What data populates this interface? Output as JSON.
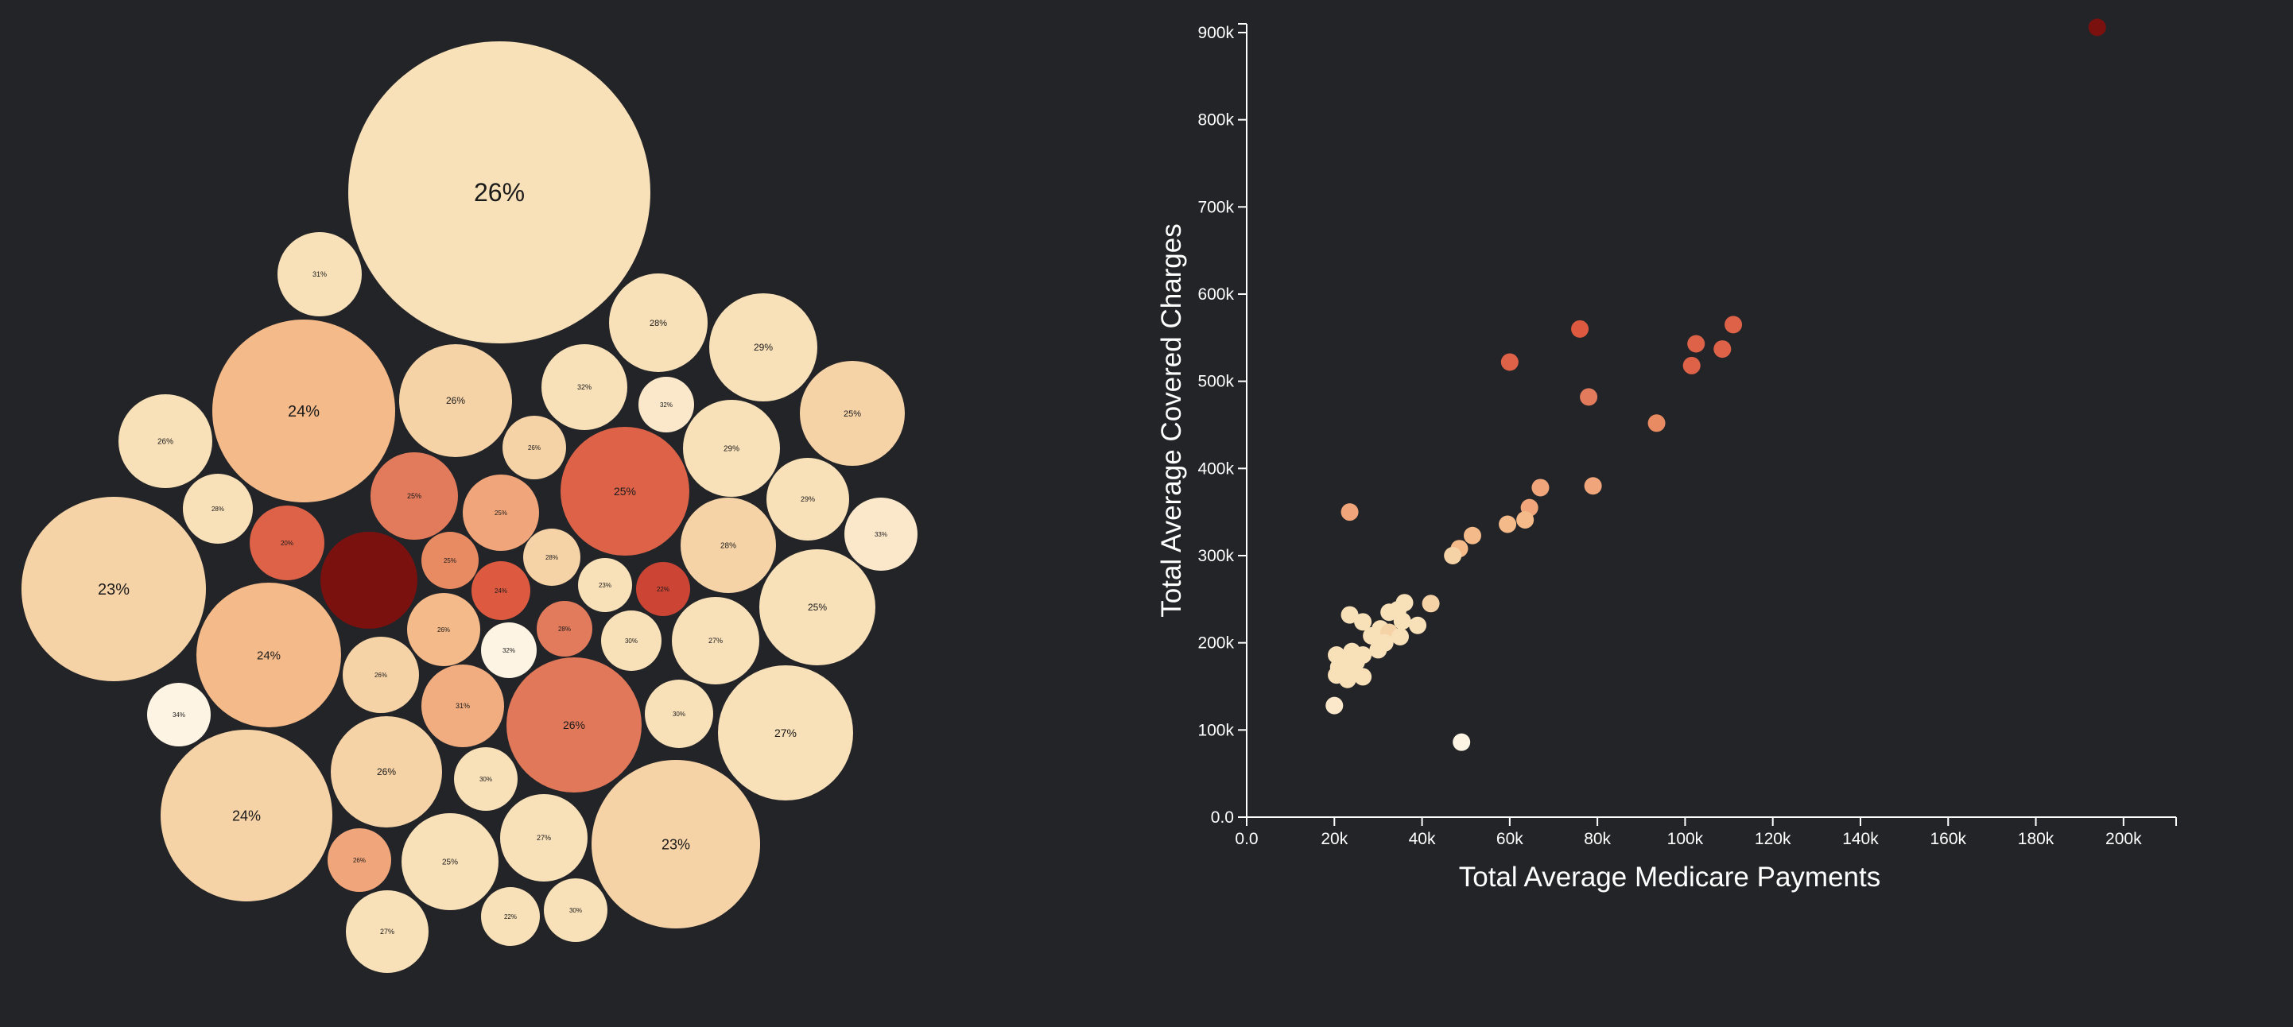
{
  "palette": {
    "background": "#232428",
    "axis": "#ffffff",
    "color_scale_low": "#fdf4e3",
    "color_scale_mid_light": "#f6d5aa",
    "color_scale_mid": "#f0a87a",
    "color_scale_high": "#dd5a40",
    "color_scale_max": "#7a110f"
  },
  "chart_data": [
    {
      "type": "bubble",
      "value_format": "percent label per bubble, color encodes value",
      "bubbles": [
        {
          "label": "26%",
          "r": 190,
          "color": "#f8e0b8"
        },
        {
          "label": "31%",
          "r": 53,
          "color": "#f8e0b8"
        },
        {
          "label": "24%",
          "r": 115,
          "color": "#f4ba8a"
        },
        {
          "label": "26%",
          "r": 71,
          "color": "#f6d3a7"
        },
        {
          "label": "32%",
          "r": 54,
          "color": "#f8e0b8"
        },
        {
          "label": "28%",
          "r": 62,
          "color": "#f8e0b8"
        },
        {
          "label": "29%",
          "r": 68,
          "color": "#f8e0b8"
        },
        {
          "label": "32%",
          "r": 35,
          "color": "#fbe8cb"
        },
        {
          "label": "26%",
          "r": 59,
          "color": "#f8e0b8"
        },
        {
          "label": "26%",
          "r": 40,
          "color": "#f6d3a7"
        },
        {
          "label": "25%",
          "r": 66,
          "color": "#f6d3a7"
        },
        {
          "label": "25%",
          "r": 55,
          "color": "#e27a5c"
        },
        {
          "label": "25%",
          "r": 48,
          "color": "#f1a57a"
        },
        {
          "label": "25%",
          "r": 81,
          "color": "#dd6248"
        },
        {
          "label": "29%",
          "r": 61,
          "color": "#f8e0b8"
        },
        {
          "label": "28%",
          "r": 44,
          "color": "#f8e0b8"
        },
        {
          "label": "29%",
          "r": 52,
          "color": "#f8e0b8"
        },
        {
          "label": "33%",
          "r": 46,
          "color": "#fbe8cb"
        },
        {
          "label": "20%",
          "r": 47,
          "color": "#dd6248"
        },
        {
          "label": "23%",
          "r": 116,
          "color": "#f6d3a7"
        },
        {
          "label": "",
          "r": 61,
          "color": "#7a110f"
        },
        {
          "label": "25%",
          "r": 36,
          "color": "#e88a62"
        },
        {
          "label": "28%",
          "r": 36,
          "color": "#f6d3a7"
        },
        {
          "label": "28%",
          "r": 60,
          "color": "#f6d3a7"
        },
        {
          "label": "24%",
          "r": 37,
          "color": "#dd5a40"
        },
        {
          "label": "23%",
          "r": 34,
          "color": "#f8e0b8"
        },
        {
          "label": "22%",
          "r": 34,
          "color": "#cc4434"
        },
        {
          "label": "25%",
          "r": 73,
          "color": "#f8e0b8"
        },
        {
          "label": "24%",
          "r": 91,
          "color": "#f4ba8a"
        },
        {
          "label": "26%",
          "r": 46,
          "color": "#f4ba8a"
        },
        {
          "label": "32%",
          "r": 35,
          "color": "#fdf4e3"
        },
        {
          "label": "28%",
          "r": 35,
          "color": "#e27a5c"
        },
        {
          "label": "30%",
          "r": 38,
          "color": "#f8e0b8"
        },
        {
          "label": "27%",
          "r": 55,
          "color": "#f8e0b8"
        },
        {
          "label": "26%",
          "r": 48,
          "color": "#f6d3a7"
        },
        {
          "label": "34%",
          "r": 40,
          "color": "#fdf4e3"
        },
        {
          "label": "31%",
          "r": 52,
          "color": "#f1ad80"
        },
        {
          "label": "26%",
          "r": 85,
          "color": "#e2785a"
        },
        {
          "label": "30%",
          "r": 43,
          "color": "#f8e0b8"
        },
        {
          "label": "27%",
          "r": 85,
          "color": "#f8e0b8"
        },
        {
          "label": "24%",
          "r": 108,
          "color": "#f6d3a7"
        },
        {
          "label": "26%",
          "r": 70,
          "color": "#f6d3a7"
        },
        {
          "label": "30%",
          "r": 40,
          "color": "#f8e0b8"
        },
        {
          "label": "27%",
          "r": 55,
          "color": "#f8e0b8"
        },
        {
          "label": "23%",
          "r": 106,
          "color": "#f6d3a7"
        },
        {
          "label": "26%",
          "r": 40,
          "color": "#f1a57a"
        },
        {
          "label": "25%",
          "r": 61,
          "color": "#f8e0b8"
        },
        {
          "label": "22%",
          "r": 37,
          "color": "#f8e0b8"
        },
        {
          "label": "30%",
          "r": 40,
          "color": "#f8e0b8"
        },
        {
          "label": "27%",
          "r": 52,
          "color": "#f8e0b8"
        }
      ]
    },
    {
      "type": "scatter",
      "xlabel": "Total Average Medicare Payments",
      "ylabel": "Total Average Covered Charges",
      "xlim": [
        0,
        212000
      ],
      "ylim": [
        0,
        910000
      ],
      "x_ticks": [
        0,
        20000,
        40000,
        60000,
        80000,
        100000,
        120000,
        140000,
        160000,
        180000,
        200000
      ],
      "x_tick_labels": [
        "0.0",
        "20k",
        "40k",
        "60k",
        "80k",
        "100k",
        "120k",
        "140k",
        "160k",
        "180k",
        "200k"
      ],
      "y_ticks": [
        0,
        100000,
        200000,
        300000,
        400000,
        500000,
        600000,
        700000,
        800000,
        900000
      ],
      "y_tick_labels": [
        "0.0",
        "100k",
        "200k",
        "300k",
        "400k",
        "500k",
        "600k",
        "700k",
        "800k",
        "900k"
      ],
      "grid": false,
      "points": [
        {
          "x": 194000,
          "y": 906000,
          "color": "#7a110f"
        },
        {
          "x": 76000,
          "y": 560000,
          "color": "#dd5a40"
        },
        {
          "x": 111000,
          "y": 565000,
          "color": "#dd6248"
        },
        {
          "x": 102500,
          "y": 543000,
          "color": "#dd6248"
        },
        {
          "x": 108500,
          "y": 537000,
          "color": "#dd6248"
        },
        {
          "x": 60000,
          "y": 522000,
          "color": "#dd6248"
        },
        {
          "x": 101500,
          "y": 518000,
          "color": "#dd6248"
        },
        {
          "x": 78000,
          "y": 482000,
          "color": "#e27a5c"
        },
        {
          "x": 93500,
          "y": 452000,
          "color": "#e88a62"
        },
        {
          "x": 79000,
          "y": 380000,
          "color": "#f1a57a"
        },
        {
          "x": 67000,
          "y": 378000,
          "color": "#f1a57a"
        },
        {
          "x": 64500,
          "y": 355000,
          "color": "#f1a57a"
        },
        {
          "x": 23500,
          "y": 350000,
          "color": "#f1a57a"
        },
        {
          "x": 63500,
          "y": 341000,
          "color": "#f4ba8a"
        },
        {
          "x": 59500,
          "y": 336000,
          "color": "#f4ba8a"
        },
        {
          "x": 51500,
          "y": 323000,
          "color": "#f4ba8a"
        },
        {
          "x": 48500,
          "y": 308000,
          "color": "#f4ba8a"
        },
        {
          "x": 47000,
          "y": 300000,
          "color": "#f6d3a7"
        },
        {
          "x": 42000,
          "y": 245000,
          "color": "#f6d3a7"
        },
        {
          "x": 36000,
          "y": 246000,
          "color": "#f8e0b8"
        },
        {
          "x": 34500,
          "y": 238000,
          "color": "#f8e0b8"
        },
        {
          "x": 32500,
          "y": 235000,
          "color": "#f8e0b8"
        },
        {
          "x": 23500,
          "y": 232000,
          "color": "#f8e0b8"
        },
        {
          "x": 26500,
          "y": 224000,
          "color": "#f8e0b8"
        },
        {
          "x": 35500,
          "y": 225000,
          "color": "#f8e0b8"
        },
        {
          "x": 39000,
          "y": 220000,
          "color": "#f8e0b8"
        },
        {
          "x": 30500,
          "y": 216000,
          "color": "#f8e0b8"
        },
        {
          "x": 32500,
          "y": 212000,
          "color": "#f6d3a7"
        },
        {
          "x": 28500,
          "y": 208000,
          "color": "#f8e0b8"
        },
        {
          "x": 35000,
          "y": 207000,
          "color": "#f8e0b8"
        },
        {
          "x": 31500,
          "y": 200000,
          "color": "#f8e0b8"
        },
        {
          "x": 30000,
          "y": 192000,
          "color": "#f8e0b8"
        },
        {
          "x": 24000,
          "y": 190000,
          "color": "#f8e0b8"
        },
        {
          "x": 26500,
          "y": 186000,
          "color": "#f8e0b8"
        },
        {
          "x": 20500,
          "y": 186000,
          "color": "#f8e0b8"
        },
        {
          "x": 22500,
          "y": 182000,
          "color": "#f8e0b8"
        },
        {
          "x": 25000,
          "y": 178000,
          "color": "#f8e0b8"
        },
        {
          "x": 21000,
          "y": 172000,
          "color": "#f8e0b8"
        },
        {
          "x": 23500,
          "y": 170000,
          "color": "#f8e0b8"
        },
        {
          "x": 22500,
          "y": 166000,
          "color": "#f8e0b8"
        },
        {
          "x": 20500,
          "y": 163000,
          "color": "#f8e0b8"
        },
        {
          "x": 26500,
          "y": 161000,
          "color": "#f8e0b8"
        },
        {
          "x": 23000,
          "y": 158000,
          "color": "#f8e0b8"
        },
        {
          "x": 20000,
          "y": 128000,
          "color": "#fbe8cb"
        },
        {
          "x": 49000,
          "y": 86000,
          "color": "#fdf4e3"
        }
      ]
    }
  ]
}
